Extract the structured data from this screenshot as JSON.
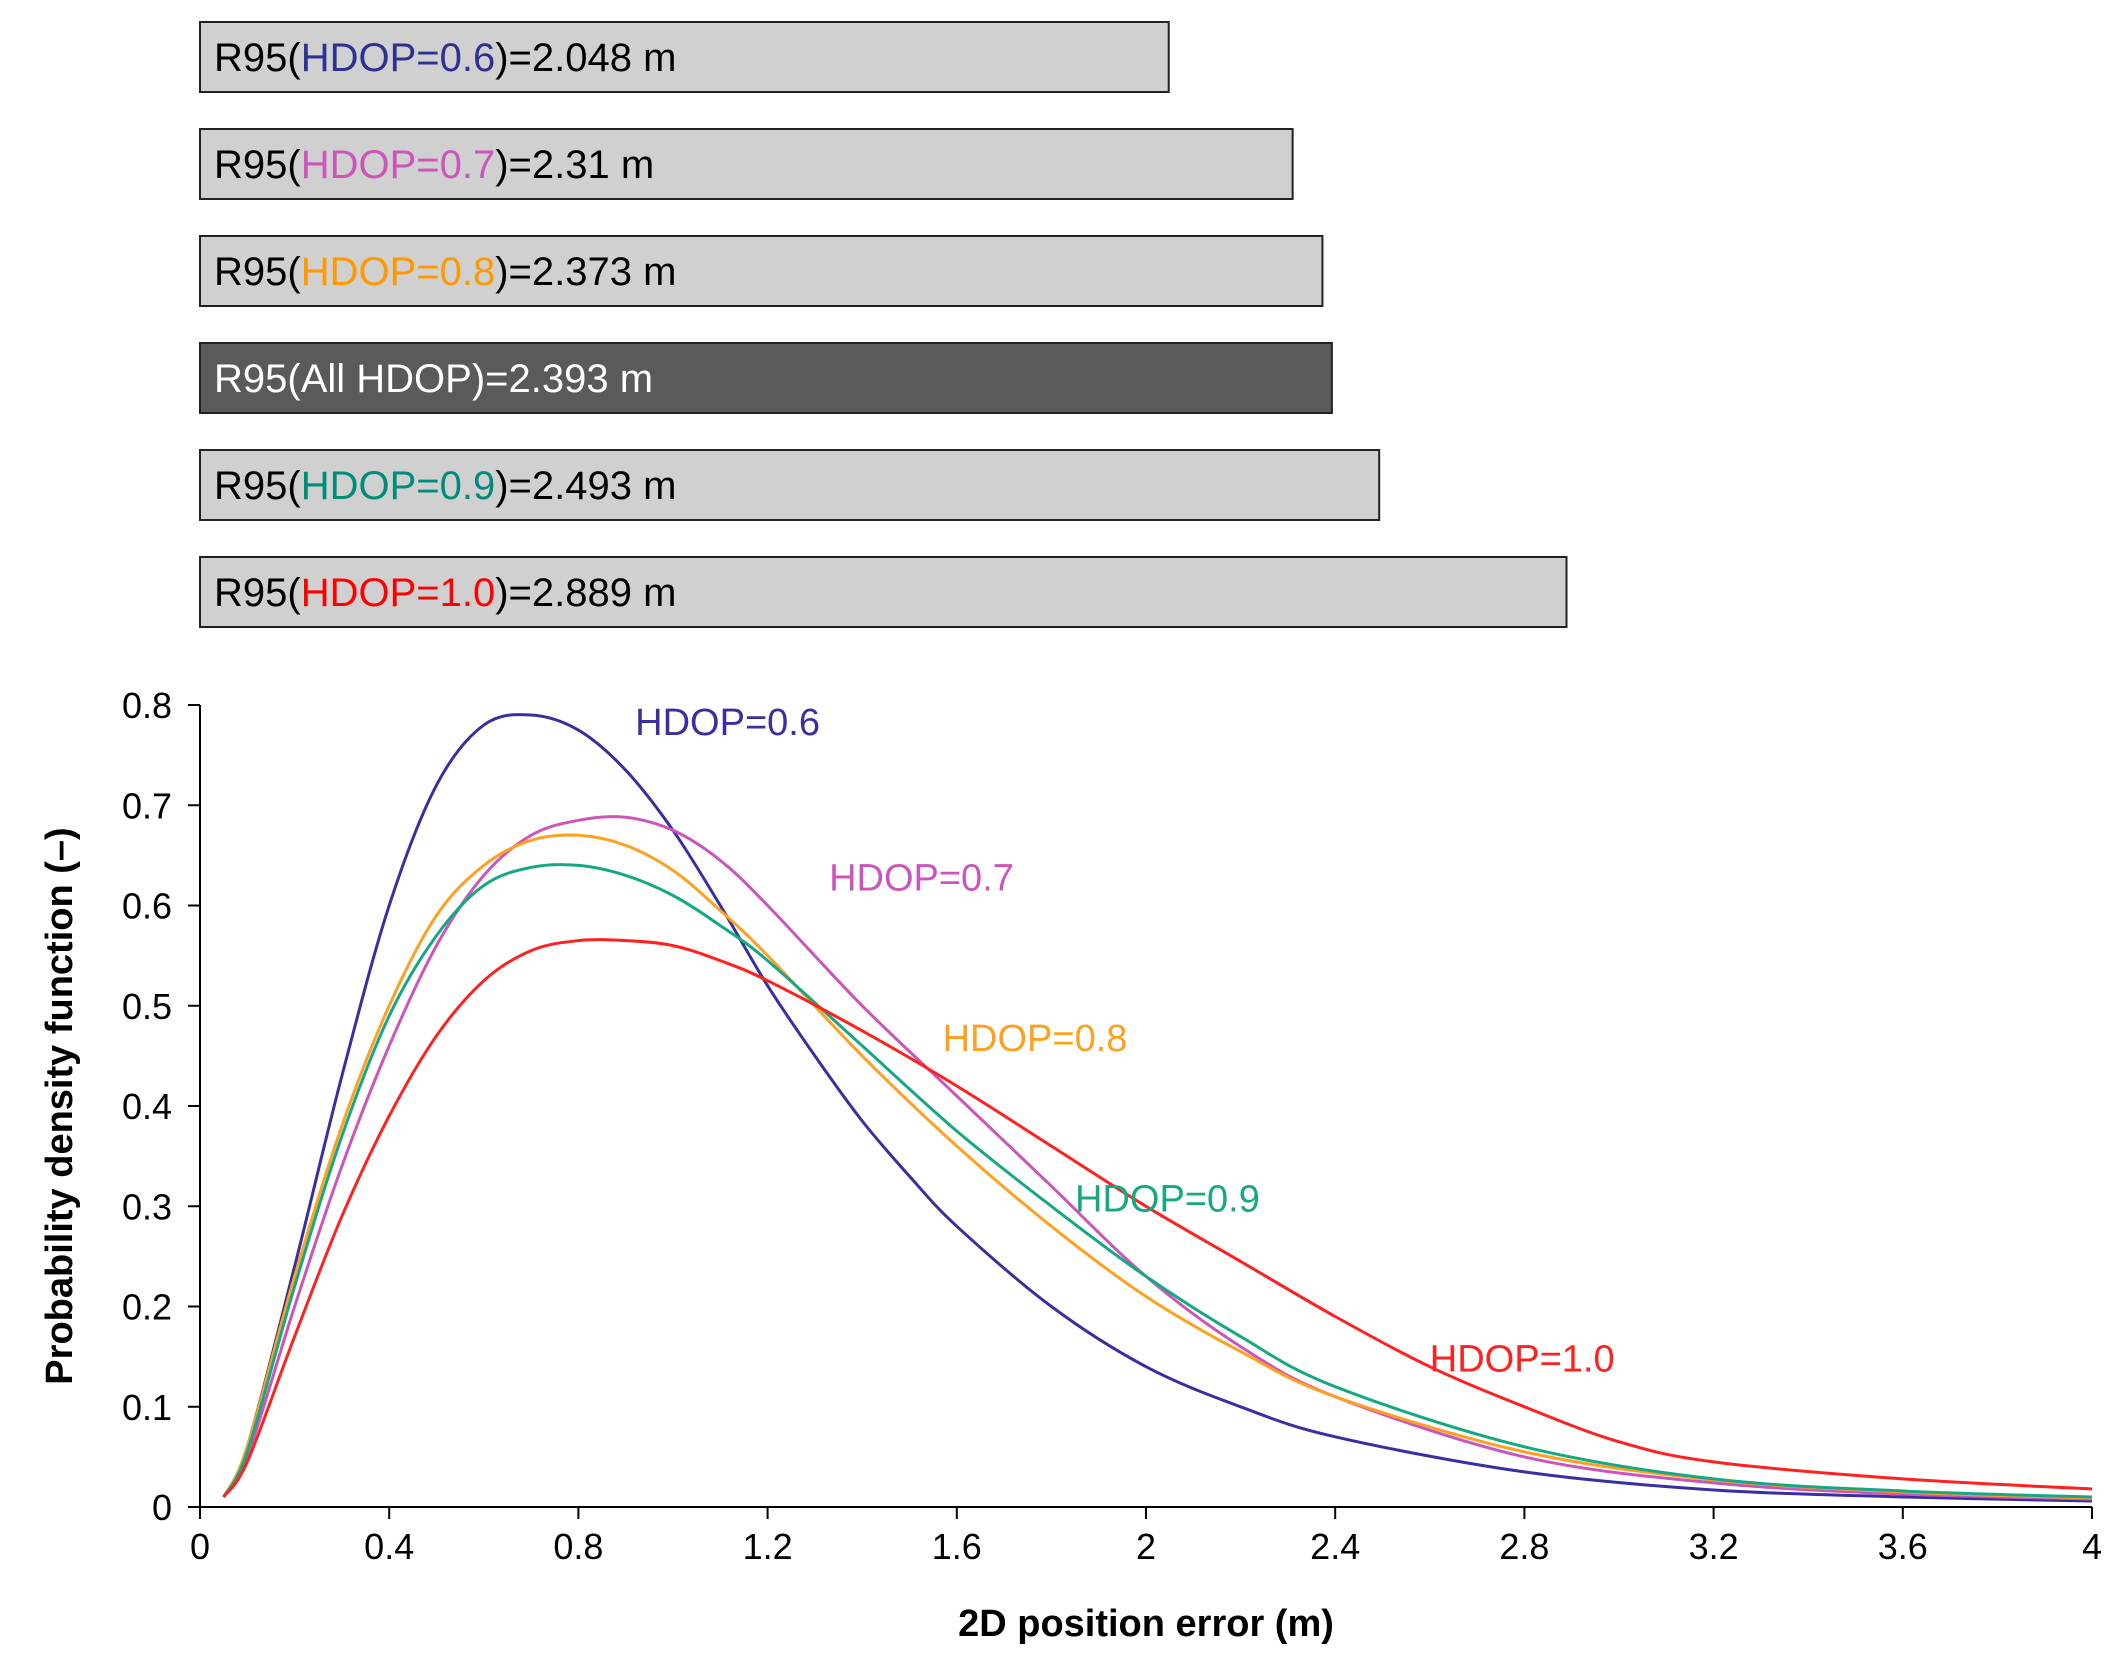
{
  "chart_data": [
    {
      "type": "bar",
      "orientation": "horizontal",
      "title": "",
      "xlabel": "",
      "ylabel": "",
      "xlim": [
        0,
        4
      ],
      "categories": [
        "HDOP=0.6",
        "HDOP=0.7",
        "HDOP=0.8",
        "All HDOP",
        "HDOP=0.9",
        "HDOP=1.0"
      ],
      "values": [
        2.048,
        2.31,
        2.373,
        2.393,
        2.493,
        2.889
      ],
      "bars": [
        {
          "prefix": "R95(",
          "label": "HDOP=0.6",
          "suffix": ")=2.048 m",
          "value": 2.048,
          "label_color": "#2e3192",
          "fill": "#d0d0d0",
          "text_color": "#000000"
        },
        {
          "prefix": "R95(",
          "label": "HDOP=0.7",
          "suffix": ")=2.31 m",
          "value": 2.31,
          "label_color": "#cc55bb",
          "fill": "#d0d0d0",
          "text_color": "#000000"
        },
        {
          "prefix": "R95(",
          "label": "HDOP=0.8",
          "suffix": ")=2.373 m",
          "value": 2.373,
          "label_color": "#ff9900",
          "fill": "#d0d0d0",
          "text_color": "#000000"
        },
        {
          "prefix": "R95(",
          "label": "All HDOP",
          "suffix": ")=2.393 m",
          "value": 2.393,
          "label_color": "#ffffff",
          "fill": "#5a5a5a",
          "text_color": "#ffffff"
        },
        {
          "prefix": "R95(",
          "label": "HDOP=0.9",
          "suffix": ")=2.493 m",
          "value": 2.493,
          "label_color": "#008c7a",
          "fill": "#d0d0d0",
          "text_color": "#000000"
        },
        {
          "prefix": "R95(",
          "label": "HDOP=1.0",
          "suffix": ")=2.889 m",
          "value": 2.889,
          "label_color": "#ff0000",
          "fill": "#d0d0d0",
          "text_color": "#000000"
        }
      ]
    },
    {
      "type": "line",
      "title": "",
      "xlabel": "2D position error (m)",
      "ylabel": "Probability density function (–)",
      "xlim": [
        0,
        4
      ],
      "ylim": [
        0,
        0.8
      ],
      "xticks": [
        0,
        0.4,
        0.8,
        1.2,
        1.6,
        2,
        2.4,
        2.8,
        3.2,
        3.6,
        4
      ],
      "xtick_labels": [
        "0",
        "0.4",
        "0.8",
        "1.2",
        "1.6",
        "2",
        "2.4",
        "2.8",
        "3.2",
        "3.6",
        "4"
      ],
      "yticks": [
        0,
        0.1,
        0.2,
        0.3,
        0.4,
        0.5,
        0.6,
        0.7,
        0.8
      ],
      "ytick_labels": [
        "0",
        "0.1",
        "0.2",
        "0.3",
        "0.4",
        "0.5",
        "0.6",
        "0.7",
        "0.8"
      ],
      "grid": false,
      "series": [
        {
          "name": "HDOP=0.6",
          "color": "#3a2fa0",
          "label_at": [
            0.92,
            0.77
          ],
          "x": [
            0.05,
            0.1,
            0.2,
            0.3,
            0.4,
            0.5,
            0.6,
            0.7,
            0.8,
            0.9,
            1.0,
            1.1,
            1.2,
            1.3,
            1.4,
            1.5,
            1.6,
            1.8,
            2.0,
            2.2,
            2.4,
            2.8,
            3.2,
            3.6,
            4.0
          ],
          "y": [
            0.01,
            0.06,
            0.24,
            0.43,
            0.6,
            0.72,
            0.78,
            0.79,
            0.775,
            0.735,
            0.675,
            0.6,
            0.52,
            0.45,
            0.385,
            0.33,
            0.28,
            0.2,
            0.14,
            0.1,
            0.07,
            0.035,
            0.017,
            0.01,
            0.006
          ]
        },
        {
          "name": "HDOP=0.7",
          "color": "#cc55bb",
          "label_at": [
            1.33,
            0.615
          ],
          "x": [
            0.05,
            0.1,
            0.2,
            0.3,
            0.4,
            0.5,
            0.6,
            0.7,
            0.8,
            0.9,
            1.0,
            1.1,
            1.2,
            1.4,
            1.6,
            1.8,
            2.0,
            2.2,
            2.4,
            2.8,
            3.2,
            3.6,
            4.0
          ],
          "y": [
            0.01,
            0.05,
            0.2,
            0.34,
            0.46,
            0.56,
            0.63,
            0.67,
            0.685,
            0.688,
            0.675,
            0.645,
            0.6,
            0.5,
            0.41,
            0.32,
            0.23,
            0.16,
            0.11,
            0.05,
            0.024,
            0.013,
            0.008
          ]
        },
        {
          "name": "HDOP=0.8",
          "color": "#ffa020",
          "label_at": [
            1.57,
            0.455
          ],
          "x": [
            0.05,
            0.1,
            0.2,
            0.3,
            0.4,
            0.5,
            0.6,
            0.7,
            0.8,
            0.9,
            1.0,
            1.1,
            1.2,
            1.4,
            1.6,
            1.8,
            2.0,
            2.2,
            2.4,
            2.8,
            3.2,
            3.6,
            4.0
          ],
          "y": [
            0.01,
            0.06,
            0.23,
            0.38,
            0.5,
            0.59,
            0.64,
            0.665,
            0.67,
            0.66,
            0.635,
            0.595,
            0.55,
            0.45,
            0.36,
            0.28,
            0.21,
            0.155,
            0.11,
            0.055,
            0.027,
            0.015,
            0.009
          ]
        },
        {
          "name": "HDOP=0.9",
          "color": "#15a882",
          "label_at": [
            1.85,
            0.295
          ],
          "x": [
            0.05,
            0.1,
            0.2,
            0.3,
            0.4,
            0.5,
            0.6,
            0.7,
            0.8,
            0.9,
            1.0,
            1.1,
            1.2,
            1.4,
            1.6,
            1.8,
            2.0,
            2.2,
            2.4,
            2.8,
            3.2,
            3.6,
            4.0
          ],
          "y": [
            0.01,
            0.055,
            0.22,
            0.37,
            0.49,
            0.57,
            0.62,
            0.638,
            0.64,
            0.63,
            0.61,
            0.58,
            0.545,
            0.46,
            0.375,
            0.3,
            0.23,
            0.17,
            0.12,
            0.06,
            0.028,
            0.016,
            0.01
          ]
        },
        {
          "name": "HDOP=1.0",
          "color": "#ff2020",
          "label_at": [
            2.6,
            0.135
          ],
          "x": [
            0.05,
            0.1,
            0.2,
            0.3,
            0.4,
            0.5,
            0.6,
            0.7,
            0.8,
            0.9,
            1.0,
            1.1,
            1.2,
            1.4,
            1.6,
            1.8,
            2.0,
            2.2,
            2.4,
            2.6,
            2.8,
            3.0,
            3.2,
            3.6,
            4.0
          ],
          "y": [
            0.01,
            0.045,
            0.17,
            0.29,
            0.39,
            0.47,
            0.525,
            0.555,
            0.565,
            0.565,
            0.56,
            0.545,
            0.525,
            0.475,
            0.42,
            0.36,
            0.3,
            0.245,
            0.19,
            0.14,
            0.1,
            0.065,
            0.045,
            0.028,
            0.018
          ]
        }
      ]
    }
  ]
}
